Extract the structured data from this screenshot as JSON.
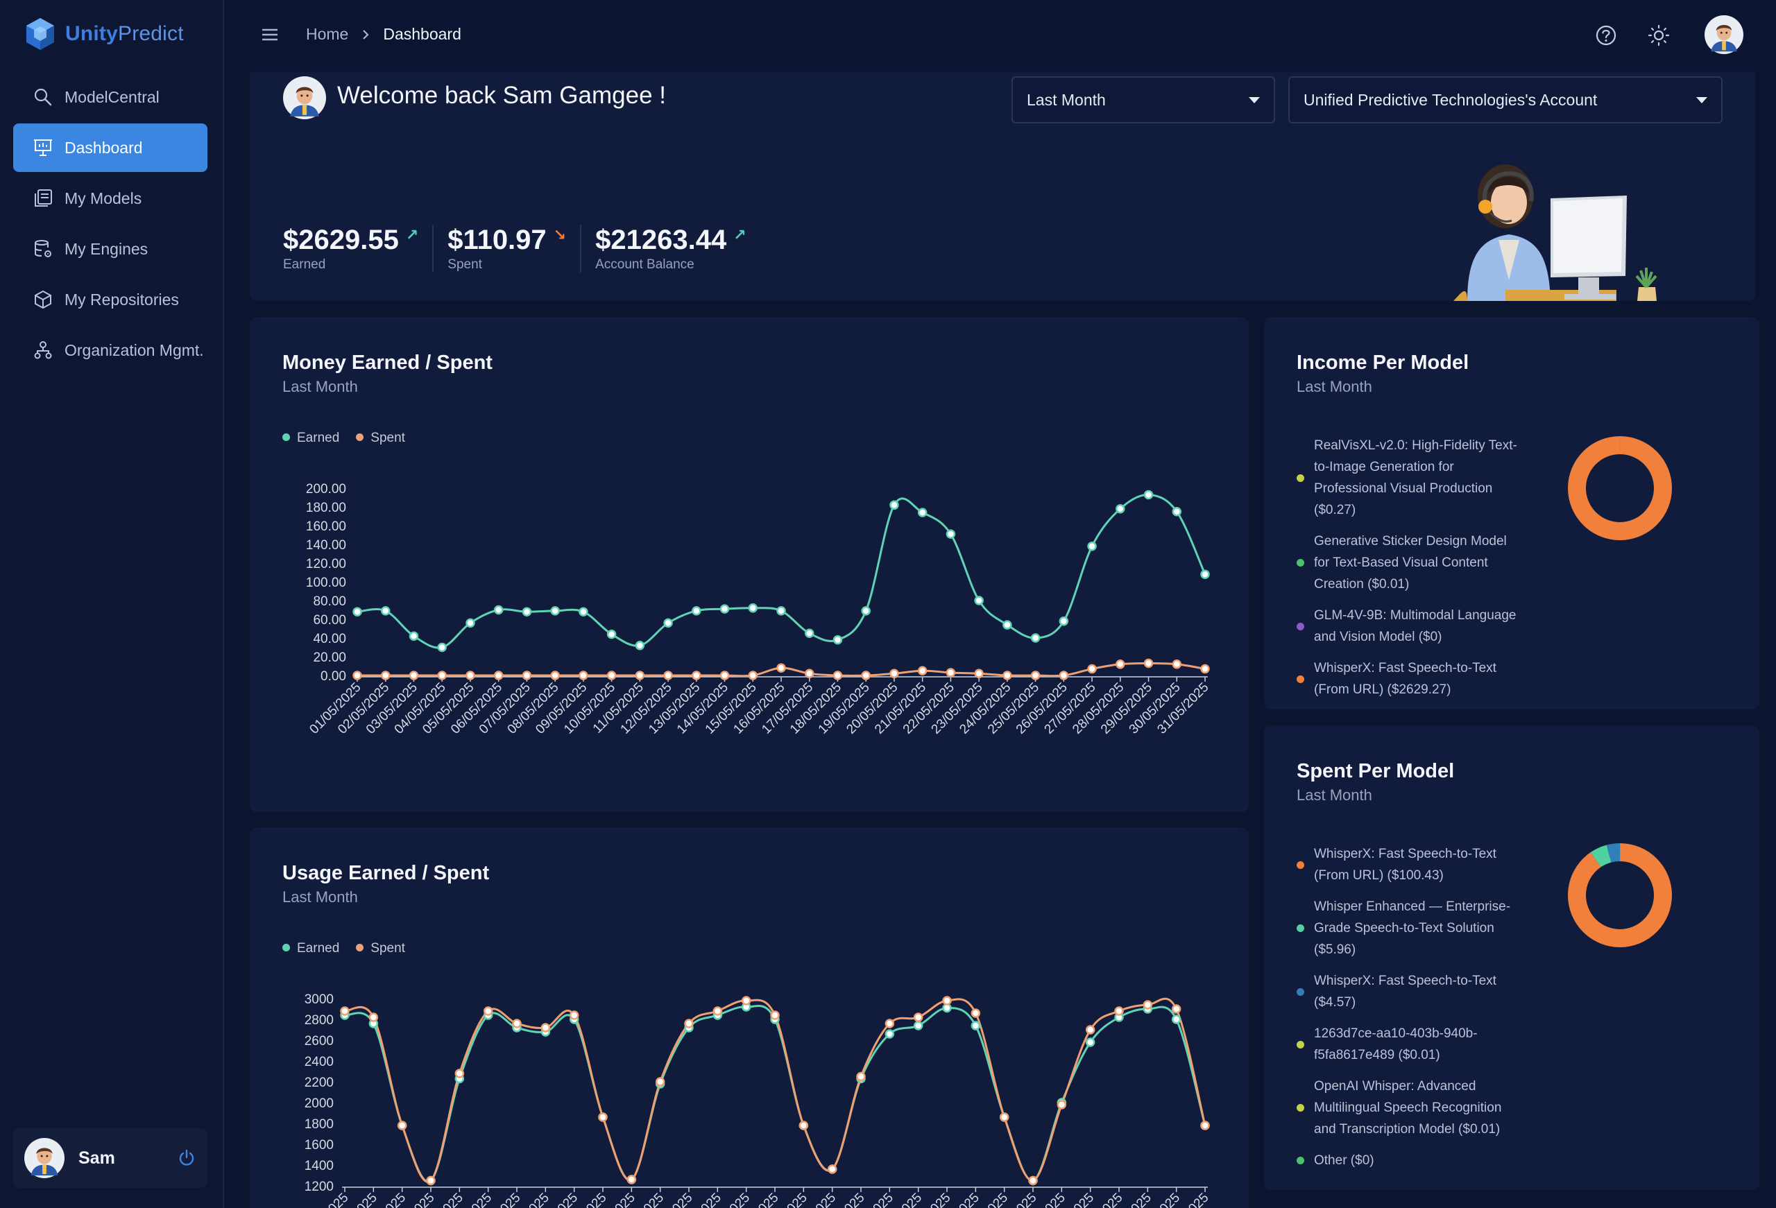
{
  "brand": {
    "name_bold": "Unity",
    "name_light": "Predict"
  },
  "sidebar": {
    "items": [
      {
        "label": "ModelCentral",
        "icon": "search-icon"
      },
      {
        "label": "Dashboard",
        "icon": "presentation-icon",
        "active": true
      },
      {
        "label": "My Models",
        "icon": "library-icon"
      },
      {
        "label": "My Engines",
        "icon": "database-gear-icon"
      },
      {
        "label": "My Repositories",
        "icon": "cube-icon"
      },
      {
        "label": "Organization Mgmt.",
        "icon": "org-chart-icon"
      }
    ],
    "user_name": "Sam"
  },
  "topbar": {
    "breadcrumb": [
      "Home",
      "Dashboard"
    ],
    "icons": [
      "help-icon",
      "sun-icon",
      "user-avatar"
    ]
  },
  "hero": {
    "welcome": "Welcome back Sam Gamgee !",
    "period_select": "Last Month",
    "account_select": "Unified Predictive Technologies's Account",
    "stats": [
      {
        "value": "$2629.55",
        "label": "Earned",
        "trend": "up",
        "color": "#4fd1b5"
      },
      {
        "value": "$110.97",
        "label": "Spent",
        "trend": "down",
        "color": "#f0803c"
      },
      {
        "value": "$21263.44",
        "label": "Account Balance",
        "trend": "up",
        "color": "#4fd1b5"
      }
    ]
  },
  "money_card": {
    "title": "Money Earned / Spent",
    "subtitle": "Last Month",
    "legend": [
      "Earned",
      "Spent"
    ]
  },
  "usage_card": {
    "title": "Usage Earned / Spent",
    "subtitle": "Last Month",
    "legend": [
      "Earned",
      "Spent"
    ]
  },
  "income_card": {
    "title": "Income Per Model",
    "subtitle": "Last Month",
    "items": [
      {
        "text": "RealVisXL-v2.0: High-Fidelity Text-to-Image Generation for Professional Visual Production ($0.27)",
        "color": "#c6d14a"
      },
      {
        "text": "Generative Sticker Design Model for Text-Based Visual Content Creation ($0.01)",
        "color": "#4fc070"
      },
      {
        "text": "GLM-4V-9B: Multimodal Language and Vision Model ($0)",
        "color": "#8a5cc6"
      },
      {
        "text": "WhisperX: Fast Speech-to-Text (From URL) ($2629.27)",
        "color": "#f0803c"
      }
    ]
  },
  "spent_card": {
    "title": "Spent Per Model",
    "subtitle": "Last Month",
    "items": [
      {
        "text": "WhisperX: Fast Speech-to-Text (From URL) ($100.43)",
        "color": "#f0803c"
      },
      {
        "text": "Whisper Enhanced — Enterprise-Grade Speech-to-Text Solution ($5.96)",
        "color": "#4fd1a0"
      },
      {
        "text": "WhisperX: Fast Speech-to-Text ($4.57)",
        "color": "#2f7fb8"
      },
      {
        "text": "1263d7ce-aa10-403b-940b-f5fa8617e489 ($0.01)",
        "color": "#c6d14a"
      },
      {
        "text": "OpenAI Whisper: Advanced Multilingual Speech Recognition and Transcription Model ($0.01)",
        "color": "#c6d14a"
      },
      {
        "text": "Other ($0)",
        "color": "#4fc070"
      }
    ]
  },
  "chart_data": [
    {
      "type": "line",
      "title": "Money Earned / Spent",
      "subtitle": "Last Month",
      "categories": [
        "01/05/2025",
        "02/05/2025",
        "03/05/2025",
        "04/05/2025",
        "05/05/2025",
        "06/05/2025",
        "07/05/2025",
        "08/05/2025",
        "09/05/2025",
        "10/05/2025",
        "11/05/2025",
        "12/05/2025",
        "13/05/2025",
        "14/05/2025",
        "15/05/2025",
        "16/05/2025",
        "17/05/2025",
        "18/05/2025",
        "19/05/2025",
        "20/05/2025",
        "21/05/2025",
        "22/05/2025",
        "23/05/2025",
        "24/05/2025",
        "25/05/2025",
        "26/05/2025",
        "27/05/2025",
        "28/05/2025",
        "29/05/2025",
        "30/05/2025",
        "31/05/2025"
      ],
      "series": [
        {
          "name": "Earned",
          "color": "#5fd3b6",
          "values": [
            68,
            69,
            42,
            30,
            56,
            70,
            68,
            69,
            68,
            44,
            32,
            56,
            69,
            71,
            72,
            69,
            45,
            38,
            69,
            182,
            174,
            151,
            80,
            54,
            40,
            58,
            138,
            178,
            193,
            175,
            108
          ]
        },
        {
          "name": "Spent",
          "color": "#f0a070",
          "values": [
            0,
            0,
            0,
            0,
            0,
            0,
            0,
            0,
            0,
            0,
            0,
            0,
            0,
            0,
            0,
            8,
            2,
            0,
            0,
            2,
            5,
            3,
            2,
            0,
            0,
            0,
            7,
            12,
            13,
            12,
            7
          ]
        }
      ],
      "yticks": [
        "0.00",
        "20.00",
        "40.00",
        "60.00",
        "80.00",
        "100.00",
        "120.00",
        "140.00",
        "160.00",
        "180.00",
        "200.00"
      ],
      "ylim": [
        0,
        200
      ],
      "legend_position": "top-left"
    },
    {
      "type": "line",
      "title": "Usage Earned / Spent",
      "subtitle": "Last Month",
      "series": [
        {
          "name": "Earned",
          "color": "#5fd3b6",
          "values": [
            2840,
            2760,
            1780,
            1250,
            2230,
            2840,
            2720,
            2680,
            2800,
            1860,
            1260,
            2180,
            2720,
            2840,
            2920,
            2800,
            1780,
            1360,
            2230,
            2660,
            2740,
            2910,
            2740,
            1860,
            1250,
            2000,
            2580,
            2820,
            2900,
            2800,
            1780
          ]
        },
        {
          "name": "Spent",
          "color": "#f0a070",
          "values": [
            2880,
            2820,
            1780,
            1250,
            2280,
            2880,
            2760,
            2720,
            2840,
            1860,
            1260,
            2200,
            2760,
            2880,
            2980,
            2840,
            1780,
            1360,
            2250,
            2760,
            2820,
            2980,
            2860,
            1860,
            1250,
            1980,
            2700,
            2880,
            2940,
            2900,
            1780
          ]
        }
      ],
      "yticks": [
        "1200",
        "1400",
        "1600",
        "1800",
        "2000",
        "2200",
        "2400",
        "2600",
        "2800",
        "3000"
      ],
      "ylim": [
        1200,
        3000
      ],
      "legend_position": "top-left"
    },
    {
      "type": "pie",
      "title": "Income Per Model",
      "slices": [
        {
          "label": "RealVisXL-v2.0",
          "value": 0.27,
          "color": "#c6d14a"
        },
        {
          "label": "Generative Sticker Design",
          "value": 0.01,
          "color": "#4fc070"
        },
        {
          "label": "GLM-4V-9B",
          "value": 0,
          "color": "#8a5cc6"
        },
        {
          "label": "WhisperX: Fast Speech-to-Text (From URL)",
          "value": 2629.27,
          "color": "#f0803c"
        }
      ]
    },
    {
      "type": "pie",
      "title": "Spent Per Model",
      "slices": [
        {
          "label": "WhisperX: Fast Speech-to-Text (From URL)",
          "value": 100.43,
          "color": "#f0803c"
        },
        {
          "label": "Whisper Enhanced",
          "value": 5.96,
          "color": "#4fd1a0"
        },
        {
          "label": "WhisperX: Fast Speech-to-Text",
          "value": 4.57,
          "color": "#2f7fb8"
        },
        {
          "label": "1263d7ce-aa10-403b-940b-f5fa8617e489",
          "value": 0.01,
          "color": "#c6d14a"
        },
        {
          "label": "OpenAI Whisper",
          "value": 0.01,
          "color": "#c6d14a"
        },
        {
          "label": "Other",
          "value": 0,
          "color": "#4fc070"
        }
      ]
    }
  ]
}
